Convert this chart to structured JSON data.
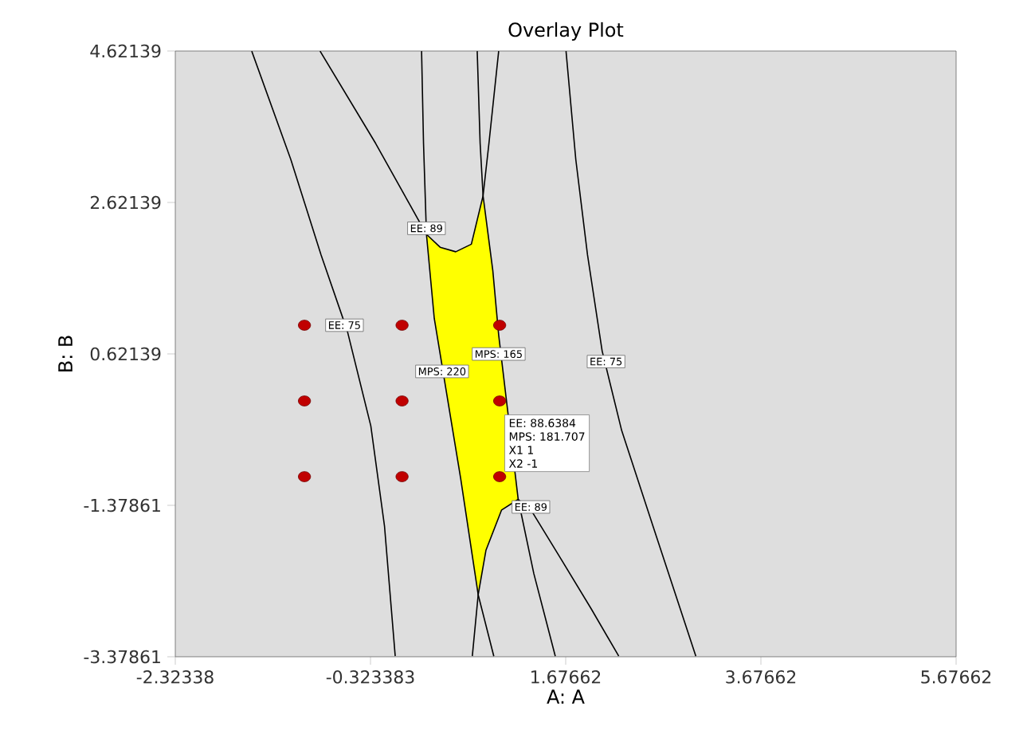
{
  "chart_data": {
    "type": "line",
    "title": "Overlay Plot",
    "xlabel": "A: A",
    "ylabel": "B: B",
    "xlim": [
      -2.32338,
      5.67662
    ],
    "ylim": [
      -3.37861,
      4.62139
    ],
    "xticks": [
      -2.32338,
      -0.323383,
      1.67662,
      3.67662,
      5.67662
    ],
    "yticks": [
      -3.37861,
      -1.37861,
      0.62139,
      2.62139,
      4.62139
    ],
    "grid": false,
    "series": [
      {
        "type": "area",
        "color": "#ffff00",
        "x": [
          0.25,
          0.39,
          0.55,
          0.71,
          0.83,
          0.93,
          0.99,
          1.1,
          1.19,
          1.02,
          0.86,
          0.78,
          0.6,
          0.41,
          0.33,
          0.25
        ],
        "values": [
          2.2,
          2.03,
          1.97,
          2.07,
          2.71,
          1.72,
          0.87,
          null,
          -1.3,
          -1.44,
          -1.97,
          -2.56,
          -1.02,
          null,
          1.09,
          2.2
        ]
      },
      {
        "color": "#000000",
        "x": [
          -1.54,
          -1.14,
          -0.83,
          -0.56,
          -0.32,
          -0.18,
          -0.07
        ],
        "values": [
          4.62,
          3.19,
          1.93,
          0.92,
          -0.33,
          -1.65,
          -3.37
        ]
      },
      {
        "color": "#000000",
        "x": [
          -0.84,
          -0.27,
          0.25,
          0.39,
          0.55,
          0.71,
          0.83,
          0.89,
          0.99
        ],
        "values": [
          4.62,
          3.4,
          2.2,
          2.03,
          1.97,
          2.07,
          2.71,
          3.4,
          4.62
        ]
      },
      {
        "color": "#000000",
        "x": [
          0.2,
          0.22,
          0.25,
          0.33,
          0.41,
          0.6,
          0.78,
          0.94
        ],
        "values": [
          4.62,
          3.4,
          2.2,
          1.09,
          null,
          -1.02,
          -2.56,
          -3.37
        ]
      },
      {
        "color": "#000000",
        "x": [
          0.77,
          0.8,
          0.83,
          0.93,
          0.99,
          1.1,
          1.19,
          1.35,
          1.57
        ],
        "values": [
          4.62,
          3.4,
          2.71,
          1.72,
          0.87,
          null,
          -1.3,
          -2.28,
          -3.37
        ]
      },
      {
        "color": "#000000",
        "x": [
          0.72,
          0.78,
          0.86,
          1.02,
          1.19,
          1.34,
          1.62,
          1.94,
          2.22
        ],
        "values": [
          -3.37,
          -2.56,
          -1.97,
          -1.44,
          -1.3,
          -1.48,
          -2.07,
          -2.75,
          -3.37
        ]
      },
      {
        "color": "#000000",
        "x": [
          1.68,
          1.78,
          1.9,
          2.05,
          2.25,
          2.57,
          3.01
        ],
        "values": [
          4.62,
          3.19,
          1.93,
          0.66,
          -0.39,
          -1.65,
          -3.37
        ]
      },
      {
        "type": "scatter",
        "color": "#c00000",
        "marker": "circle",
        "x": [
          -1,
          0,
          1,
          -1,
          0,
          1,
          -1,
          0,
          1
        ],
        "values": [
          1,
          1,
          1,
          0,
          0,
          0,
          -1,
          -1,
          -1
        ]
      }
    ],
    "annotations": [
      {
        "text": "EE: 89",
        "x": 0.25,
        "y": 2.28
      },
      {
        "text": "EE: 75",
        "x": -0.59,
        "y": 1.0
      },
      {
        "text": "MPS: 165",
        "x": 0.99,
        "y": 0.62
      },
      {
        "text": "MPS: 220",
        "x": 0.41,
        "y": 0.39
      },
      {
        "text": "EE: 75",
        "x": 2.09,
        "y": 0.52
      },
      {
        "text": "EE: 89",
        "x": 1.32,
        "y": -1.4
      },
      "EE:   88.6384",
      "MPS:   181.707",
      "X1   1",
      {
        "text": "X2   -1",
        "x": 1,
        "y": -1
      }
    ]
  }
}
